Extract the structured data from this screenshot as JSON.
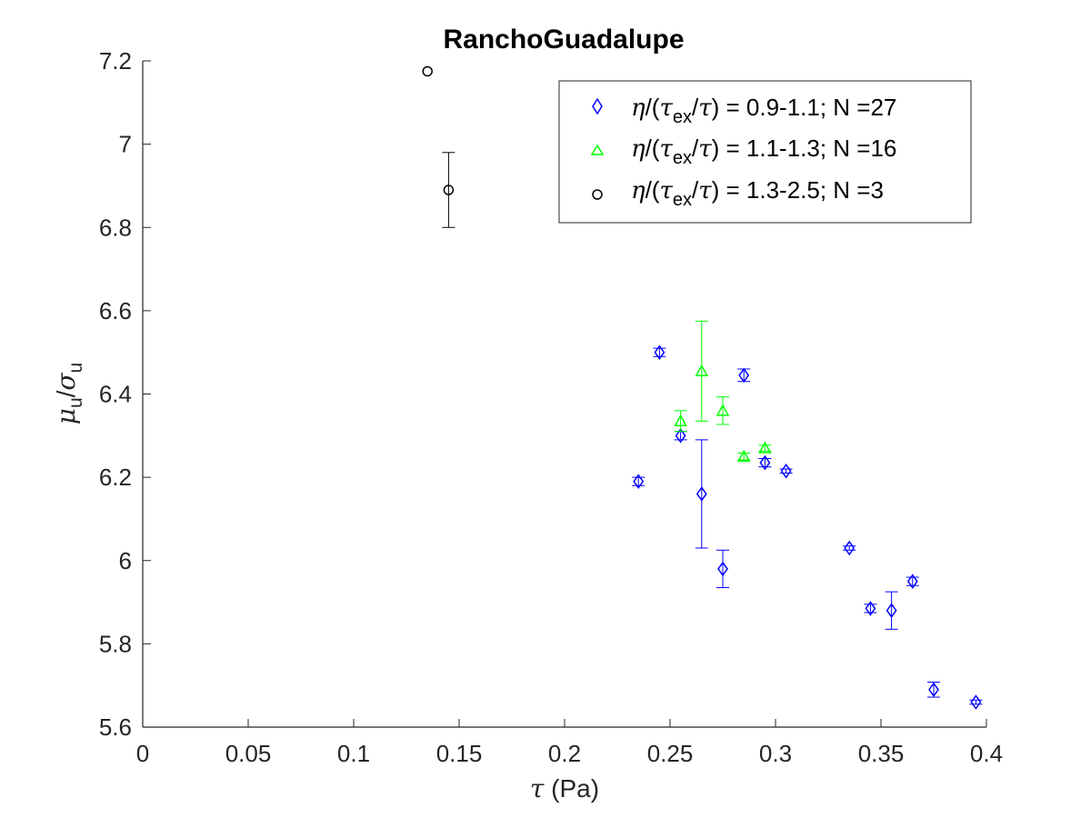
{
  "chart_data": {
    "type": "scatter",
    "title": "RanchoGuadalupe",
    "xlabel": {
      "symbol": "τ",
      "text": " (Pa)"
    },
    "ylabel": {
      "mu": "μ",
      "sub1": "u",
      "slash": "/",
      "sigma": "σ",
      "sub2": "u"
    },
    "xlim": [
      0,
      0.4
    ],
    "ylim": [
      5.6,
      7.2
    ],
    "xticks": [
      0,
      0.05,
      0.1,
      0.15,
      0.2,
      0.25,
      0.3,
      0.35,
      0.4
    ],
    "xtick_labels": [
      "0",
      "0.05",
      "0.1",
      "0.15",
      "0.2",
      "0.25",
      "0.3",
      "0.35",
      "0.4"
    ],
    "yticks": [
      5.6,
      5.8,
      6.0,
      6.2,
      6.4,
      6.6,
      6.8,
      7.0,
      7.2
    ],
    "ytick_labels": [
      "5.6",
      "5.8",
      "6",
      "6.2",
      "6.4",
      "6.6",
      "6.8",
      "7",
      "7.2"
    ],
    "grid": false,
    "legend_position": "top-right",
    "series": [
      {
        "legend": {
          "eta": "η",
          "open": "/(",
          "tau1": "τ",
          "sub": "ex",
          "mid": "/",
          "tau2": "τ",
          "rest": ") = 0.9-1.1; N =27"
        },
        "marker": "diamond",
        "color": "#0000ff",
        "points": [
          {
            "x": 0.235,
            "y": 6.19,
            "err": 0.01
          },
          {
            "x": 0.245,
            "y": 6.5,
            "err": 0.01
          },
          {
            "x": 0.255,
            "y": 6.3,
            "err": 0.01
          },
          {
            "x": 0.265,
            "y": 6.16,
            "err": 0.13
          },
          {
            "x": 0.275,
            "y": 5.98,
            "err": 0.045
          },
          {
            "x": 0.285,
            "y": 6.445,
            "err": 0.015
          },
          {
            "x": 0.295,
            "y": 6.235,
            "err": 0.01
          },
          {
            "x": 0.305,
            "y": 6.215,
            "err": 0.005
          },
          {
            "x": 0.335,
            "y": 6.03,
            "err": 0.005
          },
          {
            "x": 0.345,
            "y": 5.885,
            "err": 0.01
          },
          {
            "x": 0.355,
            "y": 5.88,
            "err": 0.045
          },
          {
            "x": 0.365,
            "y": 5.95,
            "err": 0.01
          },
          {
            "x": 0.375,
            "y": 5.69,
            "err": 0.018
          },
          {
            "x": 0.395,
            "y": 5.66,
            "err": 0.005
          }
        ]
      },
      {
        "legend": {
          "eta": "η",
          "open": "/(",
          "tau1": "τ",
          "sub": "ex",
          "mid": "/",
          "tau2": "τ",
          "rest": ") = 1.1-1.3; N =16"
        },
        "marker": "triangle",
        "color": "#00ff00",
        "points": [
          {
            "x": 0.255,
            "y": 6.335,
            "err": 0.025
          },
          {
            "x": 0.265,
            "y": 6.455,
            "err": 0.12
          },
          {
            "x": 0.275,
            "y": 6.36,
            "err": 0.033
          },
          {
            "x": 0.285,
            "y": 6.25,
            "err": 0.008
          },
          {
            "x": 0.295,
            "y": 6.27,
            "err": 0.007
          }
        ]
      },
      {
        "legend": {
          "eta": "η",
          "open": "/(",
          "tau1": "τ",
          "sub": "ex",
          "mid": "/",
          "tau2": "τ",
          "rest": ") = 1.3-2.5; N =3"
        },
        "marker": "circle",
        "color": "#000000",
        "points": [
          {
            "x": 0.135,
            "y": 7.175,
            "err": 0.0
          },
          {
            "x": 0.145,
            "y": 6.89,
            "err": 0.09
          }
        ]
      }
    ]
  }
}
